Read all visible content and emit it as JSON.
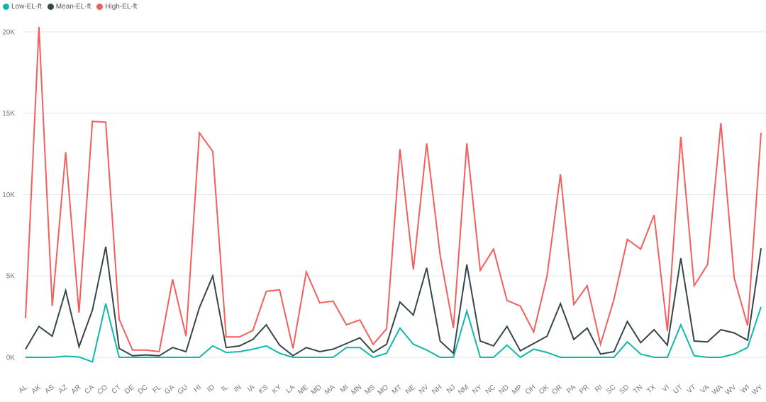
{
  "colors": {
    "low": "#10B8AC",
    "mean": "#374649",
    "high": "#F25F5C",
    "grid": "#E6E6E6"
  },
  "chart_data": {
    "type": "line",
    "title": "",
    "xlabel": "",
    "ylabel": "",
    "legend_position": "top-left",
    "grid": true,
    "ylim": [
      0,
      21000
    ],
    "y_ticks": [
      {
        "value": 0,
        "label": "0K"
      },
      {
        "value": 5000,
        "label": "5K"
      },
      {
        "value": 10000,
        "label": "10K"
      },
      {
        "value": 15000,
        "label": "15K"
      },
      {
        "value": 20000,
        "label": "20K"
      }
    ],
    "categories": [
      "AL",
      "AK",
      "AS",
      "AZ",
      "AR",
      "CA",
      "CO",
      "CT",
      "DE",
      "DC",
      "FL",
      "GA",
      "GU",
      "HI",
      "ID",
      "IL",
      "IN",
      "IA",
      "KS",
      "KY",
      "LA",
      "ME",
      "MD",
      "MA",
      "MI",
      "MN",
      "MS",
      "MO",
      "MT",
      "NE",
      "NV",
      "NH",
      "NJ",
      "NM",
      "NY",
      "NC",
      "ND",
      "MP",
      "OH",
      "OK",
      "OR",
      "PA",
      "PR",
      "RI",
      "SC",
      "SD",
      "TN",
      "TX",
      "VI",
      "UT",
      "VT",
      "VA",
      "WA",
      "WV",
      "WI",
      "WY"
    ],
    "series": [
      {
        "name": "Low-EL-ft",
        "color_key": "low",
        "values": [
          0,
          0,
          0,
          70,
          20,
          -280,
          3300,
          0,
          0,
          0,
          0,
          0,
          0,
          0,
          700,
          300,
          350,
          500,
          700,
          250,
          0,
          0,
          0,
          0,
          600,
          600,
          0,
          250,
          1800,
          800,
          450,
          0,
          0,
          2850,
          0,
          0,
          750,
          0,
          500,
          300,
          0,
          0,
          0,
          0,
          0,
          950,
          200,
          0,
          0,
          2000,
          100,
          0,
          0,
          200,
          600,
          3100
        ]
      },
      {
        "name": "Mean-EL-ft",
        "color_key": "mean",
        "values": [
          500,
          1900,
          1300,
          4100,
          650,
          2900,
          6800,
          550,
          100,
          150,
          100,
          600,
          350,
          3050,
          5000,
          600,
          700,
          1100,
          2000,
          750,
          100,
          600,
          350,
          500,
          850,
          1200,
          300,
          800,
          3400,
          2600,
          5500,
          1000,
          250,
          5700,
          1000,
          700,
          1900,
          400,
          850,
          1300,
          3300,
          1100,
          1800,
          200,
          350,
          2200,
          900,
          1700,
          750,
          6100,
          1000,
          950,
          1700,
          1500,
          1050,
          6700
        ]
      },
      {
        "name": "High-EL-ft",
        "color_key": "high",
        "values": [
          2400,
          20300,
          3150,
          12600,
          2750,
          14500,
          14450,
          2350,
          450,
          450,
          350,
          4800,
          1300,
          13800,
          12650,
          1250,
          1250,
          1650,
          4050,
          4150,
          550,
          5250,
          3350,
          3450,
          2000,
          2300,
          800,
          1750,
          12800,
          5400,
          13150,
          6300,
          1800,
          13150,
          5350,
          6650,
          3500,
          3150,
          1550,
          5000,
          11250,
          3250,
          4400,
          800,
          3550,
          7250,
          6650,
          8750,
          1600,
          13550,
          4400,
          5700,
          14400,
          4850,
          1950,
          13800
        ]
      }
    ]
  }
}
